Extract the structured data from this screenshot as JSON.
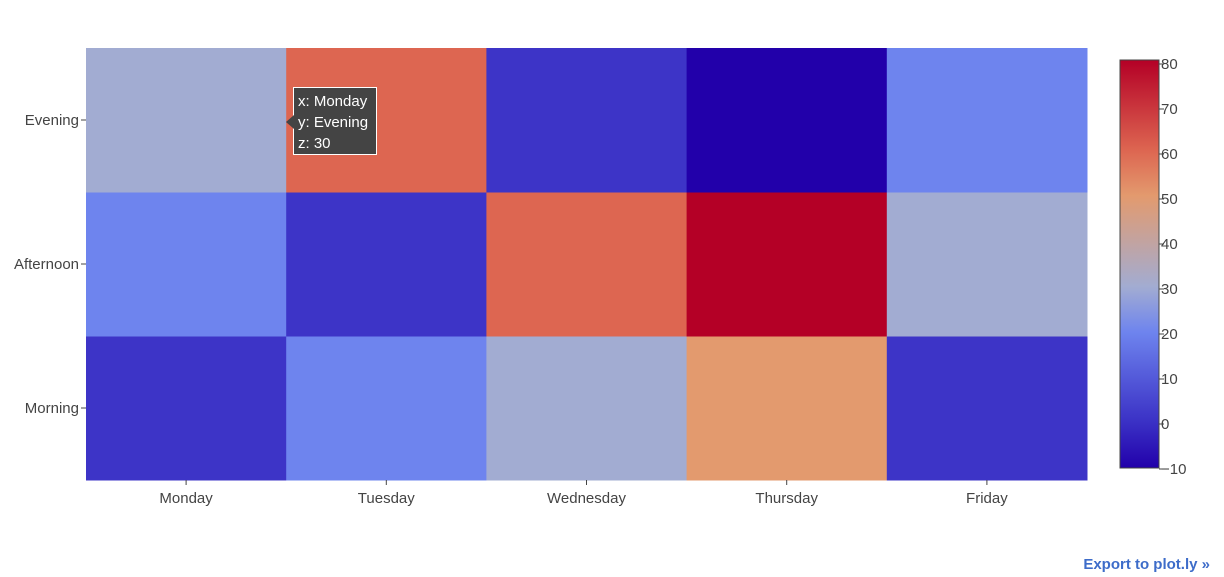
{
  "chart_data": {
    "type": "heatmap",
    "x": [
      "Monday",
      "Tuesday",
      "Wednesday",
      "Thursday",
      "Friday"
    ],
    "y": [
      "Morning",
      "Afternoon",
      "Evening"
    ],
    "z": [
      [
        1,
        20,
        30,
        50,
        1
      ],
      [
        20,
        1,
        60,
        80,
        30
      ],
      [
        30,
        60,
        1,
        -10,
        20
      ]
    ],
    "colorscale": [
      [
        0.0,
        "#2200aa"
      ],
      [
        0.111,
        "#3a30c5"
      ],
      [
        0.333,
        "#6e84ee"
      ],
      [
        0.444,
        "#a2acd2"
      ],
      [
        0.667,
        "#e39a6e"
      ],
      [
        0.778,
        "#dd6651"
      ],
      [
        1.0,
        "#b40026"
      ]
    ],
    "zmin": -10,
    "zmax": 80,
    "colorbar_ticks": [
      -10,
      0,
      10,
      20,
      30,
      40,
      50,
      60,
      70,
      80
    ]
  },
  "tooltip": {
    "x_line": "x: Monday",
    "y_line": "y: Evening",
    "z_line": "z: 30"
  },
  "export_link": "Export to plot.ly »"
}
